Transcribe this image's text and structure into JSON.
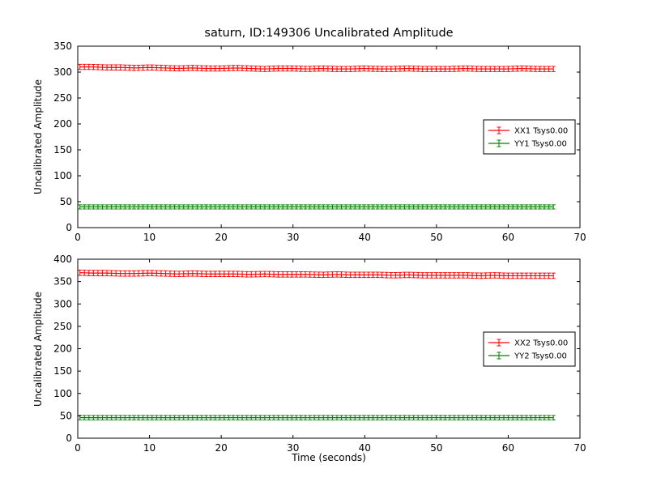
{
  "title": "saturn, ID:149306 Uncalibrated Amplitude",
  "chart_data": [
    {
      "type": "errorbar",
      "title": "saturn, ID:149306 Uncalibrated Amplitude",
      "xlabel": "",
      "ylabel": "Uncalibrated Amplitude",
      "xlim": [
        0,
        70
      ],
      "ylim": [
        0,
        350
      ],
      "xticks": [
        0,
        10,
        20,
        30,
        40,
        50,
        60,
        70
      ],
      "yticks": [
        0,
        50,
        100,
        150,
        200,
        250,
        300,
        350
      ],
      "grid": false,
      "legend_position": "center right",
      "x_data_start": 0.3,
      "x_data_end": 66.3,
      "series": [
        {
          "name": "XX1 Tsys0.00",
          "color": "#ff0000",
          "x_start": 0,
          "x_step": 2,
          "yerr": 5,
          "y": [
            310,
            310,
            309,
            309,
            308,
            309,
            308,
            307,
            308,
            307,
            307,
            308,
            307,
            306,
            307,
            307,
            306,
            307,
            306,
            306,
            307,
            306,
            306,
            307,
            306,
            306,
            306,
            307,
            306,
            306,
            306,
            307,
            306,
            306
          ]
        },
        {
          "name": "YY1 Tsys0.00",
          "color": "#008000",
          "x_start": 0,
          "x_step": 2,
          "yerr": 4,
          "y": [
            40,
            40,
            40,
            40,
            40,
            40,
            40,
            40,
            40,
            40,
            40,
            40,
            40,
            40,
            40,
            40,
            40,
            40,
            40,
            40,
            40,
            40,
            40,
            40,
            40,
            40,
            40,
            40,
            40,
            40,
            40,
            40,
            40,
            40
          ]
        }
      ]
    },
    {
      "type": "errorbar",
      "title": "",
      "xlabel": "Time (seconds)",
      "ylabel": "Uncalibrated Amplitude",
      "xlim": [
        0,
        70
      ],
      "ylim": [
        0,
        400
      ],
      "xticks": [
        0,
        10,
        20,
        30,
        40,
        50,
        60,
        70
      ],
      "yticks": [
        0,
        50,
        100,
        150,
        200,
        250,
        300,
        350,
        400
      ],
      "grid": false,
      "legend_position": "center right",
      "x_data_start": 0.3,
      "x_data_end": 66.3,
      "series": [
        {
          "name": "XX2 Tsys0.00",
          "color": "#ff0000",
          "x_start": 0,
          "x_step": 2,
          "yerr": 6,
          "y": [
            370,
            369,
            369,
            368,
            368,
            369,
            368,
            367,
            368,
            367,
            367,
            367,
            366,
            367,
            366,
            366,
            366,
            365,
            366,
            365,
            365,
            365,
            364,
            365,
            364,
            364,
            364,
            364,
            363,
            364,
            363,
            363,
            363,
            363
          ]
        },
        {
          "name": "YY2 Tsys0.00",
          "color": "#008000",
          "x_start": 0,
          "x_step": 2,
          "yerr": 5,
          "y": [
            46,
            46,
            46,
            46,
            46,
            46,
            46,
            46,
            46,
            46,
            46,
            46,
            46,
            46,
            46,
            46,
            46,
            46,
            46,
            46,
            46,
            46,
            46,
            46,
            46,
            46,
            46,
            46,
            46,
            46,
            46,
            46,
            46,
            46
          ]
        }
      ]
    }
  ]
}
